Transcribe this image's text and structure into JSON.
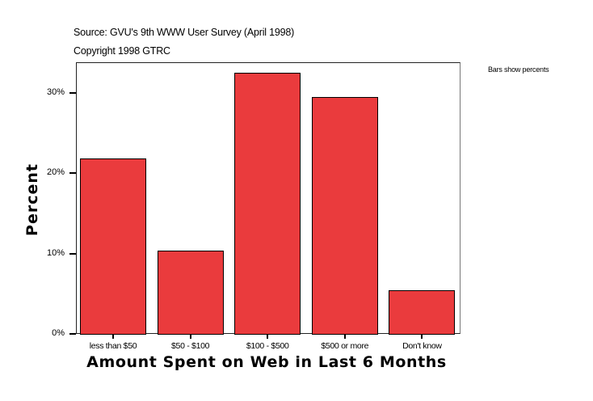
{
  "header": {
    "source": "Source: GVU's 9th WWW User Survey (April 1998)",
    "copyright": "Copyright 1998 GTRC"
  },
  "note": "Bars show percents",
  "chart_data": {
    "type": "bar",
    "title": "",
    "subtitle": "Source: GVU's 9th WWW User Survey (April 1998) / Copyright 1998 GTRC",
    "xlabel": "Amount Spent on Web in Last 6 Months",
    "ylabel": "Percent",
    "categories": [
      "less than $50",
      "$50 - $100",
      "$100 - $500",
      "$500 or more",
      "Don't know"
    ],
    "values": [
      21.9,
      10.4,
      32.5,
      29.5,
      5.4
    ],
    "yticks": [
      "0%",
      "10%",
      "20%",
      "30%"
    ],
    "ylim": [
      0,
      33.8
    ],
    "grid": false,
    "legend": "none",
    "annotation": "Bars show percents",
    "bar_color": "#ea3b3d"
  }
}
